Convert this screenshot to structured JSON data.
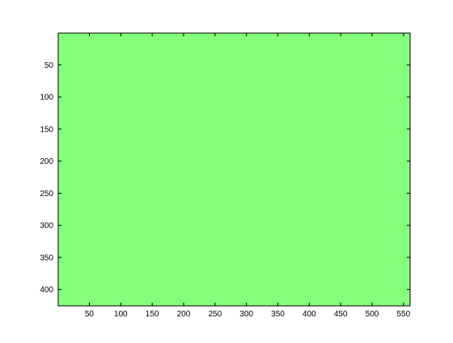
{
  "chart_data": {
    "type": "heatmap",
    "title": "",
    "xlabel": "",
    "ylabel": "",
    "xlim": [
      0.5,
      560.5
    ],
    "ylim": [
      0.5,
      425.5
    ],
    "y_reversed": true,
    "grid": false,
    "xticks": [
      50,
      100,
      150,
      200,
      250,
      300,
      350,
      400,
      450,
      500,
      550
    ],
    "xtick_labels": [
      "50",
      "100",
      "150",
      "200",
      "250",
      "300",
      "350",
      "400",
      "450",
      "500",
      "550"
    ],
    "yticks": [
      50,
      100,
      150,
      200,
      250,
      300,
      350,
      400
    ],
    "ytick_labels": [
      "50",
      "100",
      "150",
      "200",
      "250",
      "300",
      "350",
      "400"
    ],
    "image": {
      "rows": 425,
      "cols": 560,
      "uniform_color": "#85fe7b"
    }
  },
  "colors": {
    "fill": "#85fe7b",
    "axes": "#000000",
    "background": "#ffffff"
  }
}
